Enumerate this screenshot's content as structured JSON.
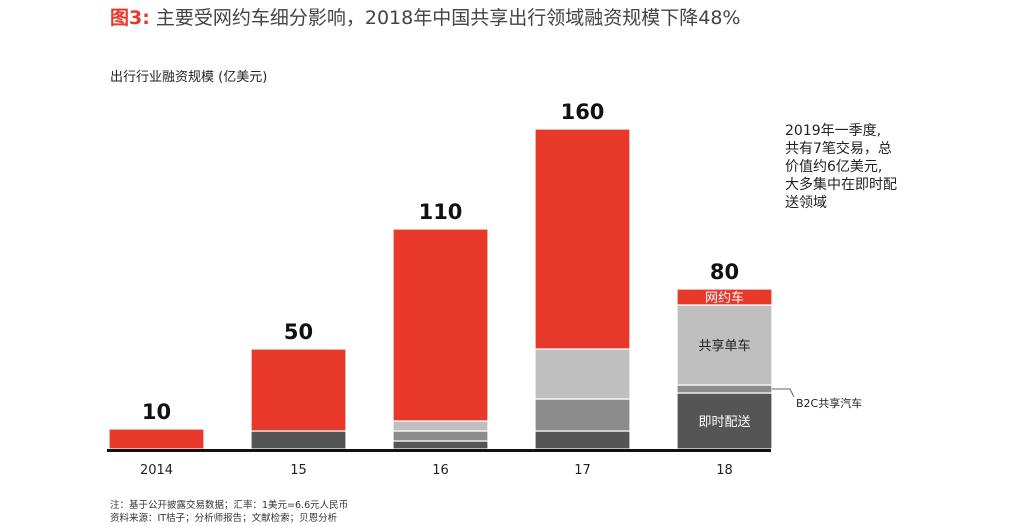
{
  "title": {
    "figure_label": "图3:",
    "text": "主要受网约车细分影响，2018年中国共享出行领域融资规模下降48%"
  },
  "colors": {
    "ride_hailing": "#e8382a",
    "bike_sharing": "#bfbfbf",
    "b2c_car_sharing": "#8c8c8c",
    "on_demand_delivery": "#555555",
    "axis": "#111111"
  },
  "chart_data": {
    "type": "bar",
    "stacked": true,
    "ylabel": "出行行业融资规模 (亿美元)",
    "categories": [
      "2014",
      "15",
      "16",
      "17",
      "18"
    ],
    "totals": [
      10,
      50,
      110,
      160,
      80
    ],
    "series": [
      {
        "key": "on_demand_delivery",
        "name": "即时配送",
        "values": [
          0,
          9,
          4,
          9,
          28
        ]
      },
      {
        "key": "b2c_car_sharing",
        "name": "B2C共享汽车",
        "values": [
          0,
          0,
          5,
          16,
          4
        ]
      },
      {
        "key": "bike_sharing",
        "name": "共享单车",
        "values": [
          0,
          0,
          5,
          25,
          40
        ]
      },
      {
        "key": "ride_hailing",
        "name": "网约车",
        "values": [
          10,
          41,
          96,
          110,
          8
        ]
      }
    ],
    "ylim": [
      0,
      175
    ],
    "grid": false,
    "legend": "inline labels on 2018 bar"
  },
  "annotation": {
    "lines": [
      "2019年一季度,",
      "共有7笔交易，总",
      "价值约6亿美元,",
      "大多集中在即时配",
      "送领域"
    ]
  },
  "footer": {
    "note": "注：基于公开披露交易数据；汇率：1美元=6.6元人民币",
    "source": "资料来源：IT桔子；分析师报告；文献检索；贝恩分析"
  }
}
